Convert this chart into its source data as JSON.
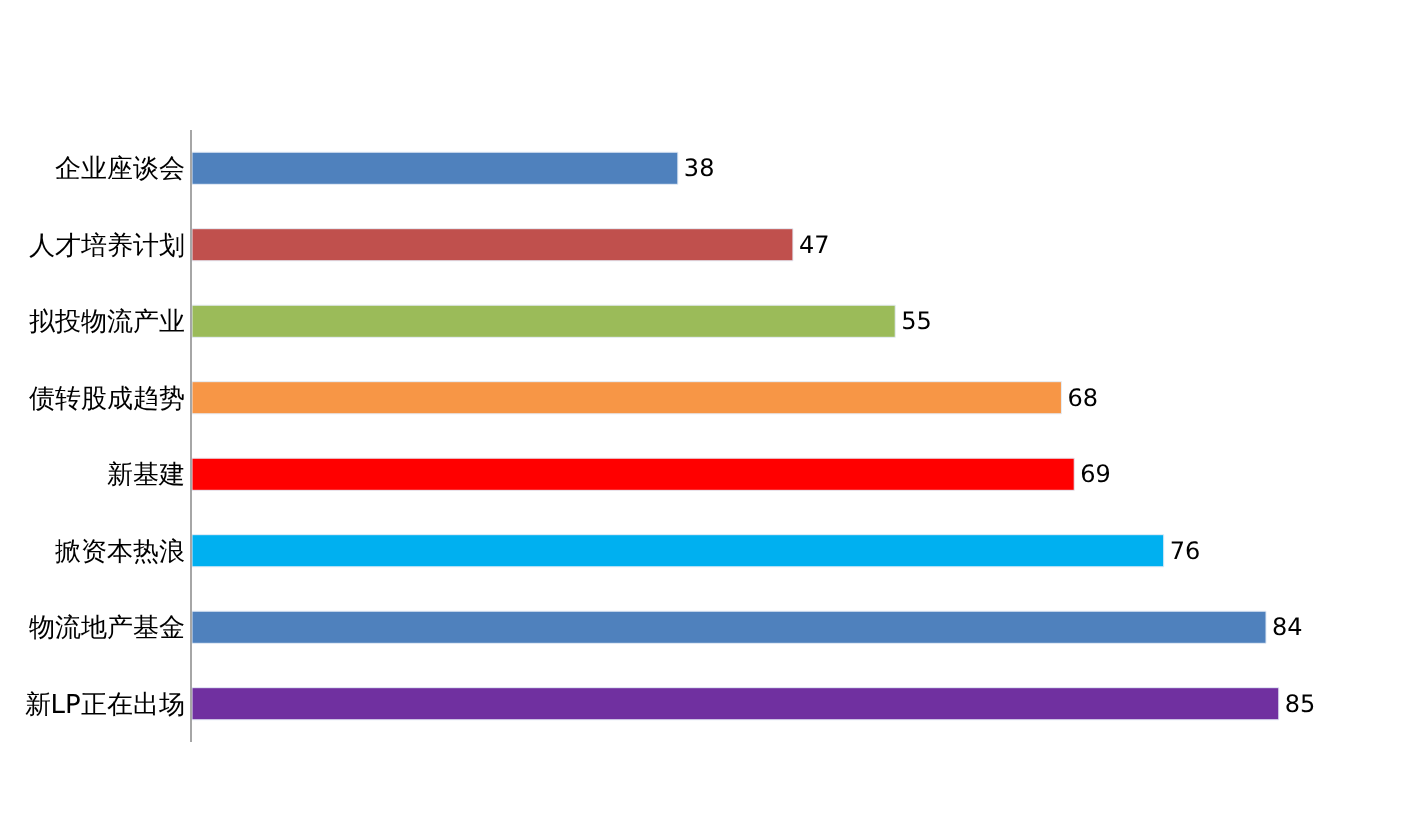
{
  "chart_data": {
    "type": "bar",
    "orientation": "horizontal",
    "data_labels": true,
    "categories": [
      "企业座谈会",
      "人才培养计划",
      "拟投物流产业",
      "债转股成趋势",
      "新基建",
      "掀资本热浪",
      "物流地产基金",
      "新LP正在出场"
    ],
    "values": [
      38,
      47,
      55,
      68,
      69,
      76,
      84,
      85
    ],
    "colors": [
      "#4f81bd",
      "#c0504d",
      "#9bbb59",
      "#f79646",
      "#ff0000",
      "#00b0f0",
      "#4f81bd",
      "#7030a0"
    ]
  }
}
